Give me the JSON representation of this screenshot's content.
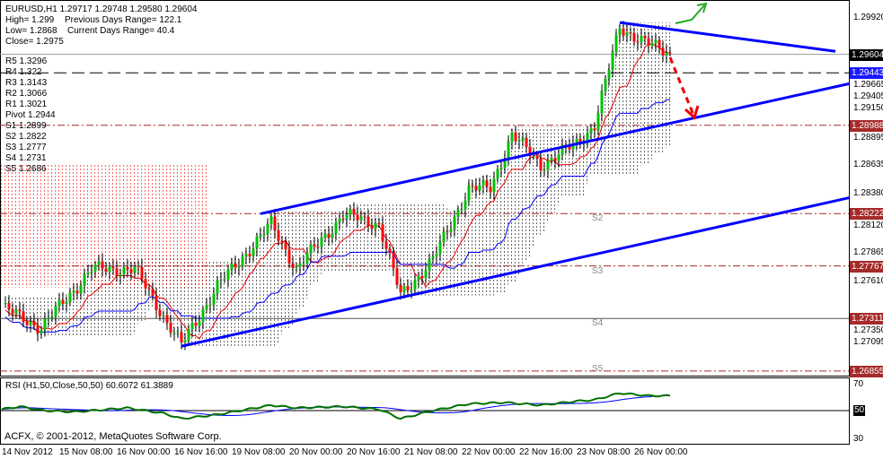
{
  "header": {
    "symbol_line": "EURUSD,H1  1.29717 1.29748 1.29580 1.29604",
    "high": "High= 1.299",
    "prev_range": "Previous Days Range= 122.1",
    "low": "Low= 1.2868",
    "curr_range": "Current Days Range= 40.4",
    "close": "Close= 1.2975"
  },
  "pivots": [
    "R5 1.3296",
    "R4 1.322",
    "R3 1.3143",
    "R2 1.3066",
    "R1 1.3021",
    "Pivot 1.2944",
    "S1 1.2899",
    "S2 1.2822",
    "S3 1.2777",
    "S4 1.2731",
    "S5 1.2686"
  ],
  "level_labels": [
    "S2",
    "S3",
    "S4",
    "S5"
  ],
  "price_axis": [
    "1.29920",
    "1.29665",
    "1.29405",
    "1.29150",
    "1.28895",
    "1.28635",
    "1.28380",
    "1.28120",
    "1.27865",
    "1.27610",
    "1.27350",
    "1.27095"
  ],
  "price_tags": [
    {
      "value": "1.29604",
      "color": "#000000"
    },
    {
      "value": "1.29443",
      "color": "#1a1aff"
    },
    {
      "value": "1.28988",
      "color": "#a52a2a"
    },
    {
      "value": "1.28222",
      "color": "#a52a2a"
    },
    {
      "value": "1.27767",
      "color": "#a52a2a"
    },
    {
      "value": "1.27311",
      "color": "#a52a2a"
    },
    {
      "value": "1.26855",
      "color": "#a52a2a"
    }
  ],
  "time_axis": [
    "14 Nov 2012",
    "15 Nov 08:00",
    "16 Nov 00:00",
    "16 Nov 16:00",
    "19 Nov 08:00",
    "20 Nov 00:00",
    "20 Nov 16:00",
    "21 Nov 08:00",
    "22 Nov 00:00",
    "22 Nov 16:00",
    "23 Nov 08:00",
    "26 Nov 00:00"
  ],
  "rsi": {
    "label": "RSI (H1,50,Close,50,50) 60.6072 61.3889",
    "levels": [
      "70",
      "50",
      "30"
    ]
  },
  "copyright": "ACFX, © 2001-2012, MetaQuotes Software Corp.",
  "colors": {
    "bull": "#00c000",
    "bear": "#ff0000",
    "trend": "#0000ff",
    "level": "#a52a2a",
    "rsi": "#007000",
    "rsi_ma": "#0000ff"
  },
  "chart_data": {
    "type": "candlestick",
    "title": "EURUSD,H1",
    "x_unit": "hours since 14 Nov 2012",
    "ylim": [
      1.268,
      1.3
    ],
    "close_path": [
      [
        1,
        1.2739
      ],
      [
        11,
        1.2723
      ],
      [
        25,
        1.2774
      ],
      [
        37,
        1.2774
      ],
      [
        50,
        1.2708
      ],
      [
        60,
        1.2759
      ],
      [
        75,
        1.2813
      ],
      [
        82,
        1.2774
      ],
      [
        95,
        1.2821
      ],
      [
        105,
        1.2813
      ],
      [
        111,
        1.2751
      ],
      [
        120,
        1.2782
      ],
      [
        130,
        1.2844
      ],
      [
        136,
        1.2844
      ],
      [
        142,
        1.2891
      ],
      [
        150,
        1.2864
      ],
      [
        160,
        1.2883
      ],
      [
        165,
        1.2899
      ],
      [
        172,
        1.2984
      ],
      [
        180,
        1.2969
      ],
      [
        186,
        1.2961
      ]
    ],
    "horizontal_levels": [
      {
        "price": 1.29443,
        "style": "dashed",
        "color": "#000000"
      },
      {
        "price": 1.28988,
        "style": "dashdot",
        "color": "#a52a2a"
      },
      {
        "price": 1.28222,
        "style": "dashdot",
        "color": "#a52a2a"
      },
      {
        "price": 1.27767,
        "style": "dashdot",
        "color": "#a52a2a"
      },
      {
        "price": 1.27311,
        "style": "solid",
        "color": "#555555"
      },
      {
        "price": 1.26855,
        "style": "dashdot",
        "color": "#a52a2a"
      },
      {
        "price": 1.29604,
        "style": "solid",
        "color": "#999999"
      }
    ],
    "trendlines": [
      {
        "t1": 72,
        "p1": 1.2822,
        "t2": 236,
        "p2": 1.2935
      },
      {
        "t1": 50,
        "p1": 1.2707,
        "t2": 236,
        "p2": 1.2836
      },
      {
        "t1": 172,
        "p1": 1.2988,
        "t2": 232,
        "p2": 1.2963
      }
    ],
    "rsi_values": [
      [
        0,
        51
      ],
      [
        5,
        53
      ],
      [
        12,
        50
      ],
      [
        20,
        49
      ],
      [
        35,
        52
      ],
      [
        45,
        48
      ],
      [
        50,
        44
      ],
      [
        60,
        47
      ],
      [
        75,
        54
      ],
      [
        82,
        52
      ],
      [
        95,
        53
      ],
      [
        105,
        51
      ],
      [
        111,
        44
      ],
      [
        120,
        50
      ],
      [
        130,
        55
      ],
      [
        140,
        56
      ],
      [
        150,
        54
      ],
      [
        160,
        57
      ],
      [
        165,
        58
      ],
      [
        172,
        63
      ],
      [
        180,
        61
      ],
      [
        186,
        61
      ]
    ],
    "rsi_ylim": [
      25,
      75
    ]
  }
}
